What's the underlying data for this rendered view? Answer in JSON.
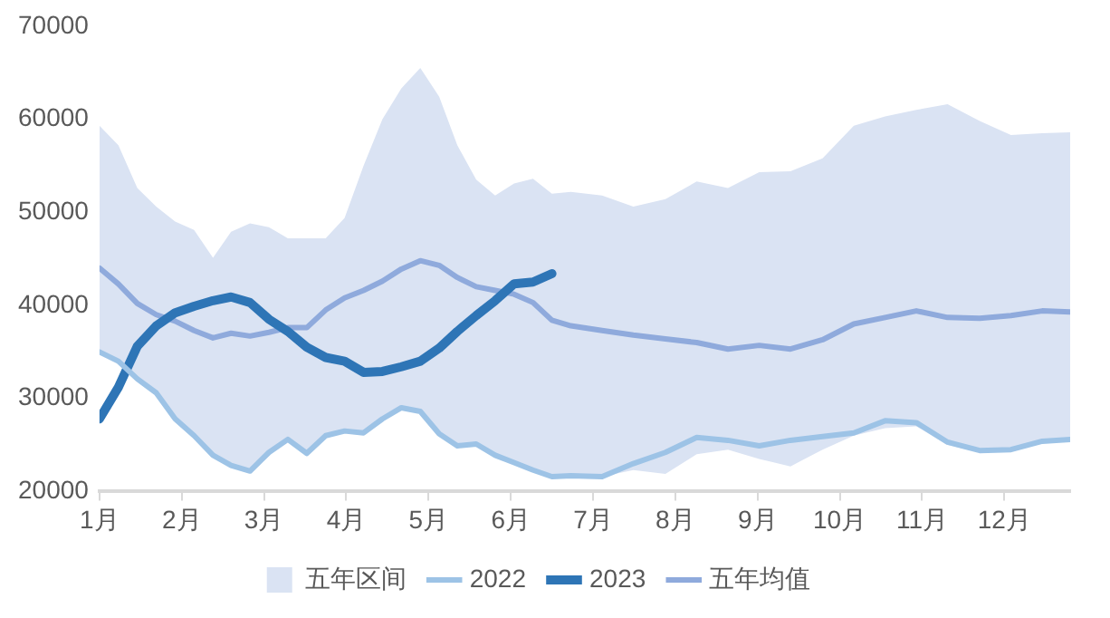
{
  "chart_data": {
    "type": "line",
    "ylim": [
      20000,
      70000
    ],
    "yticks": [
      20000,
      30000,
      40000,
      50000,
      60000,
      70000
    ],
    "xlim": [
      1,
      12.8
    ],
    "xticks": [
      {
        "value": 1,
        "label": "1月"
      },
      {
        "value": 2,
        "label": "2月"
      },
      {
        "value": 3,
        "label": "3月"
      },
      {
        "value": 4,
        "label": "4月"
      },
      {
        "value": 5,
        "label": "5月"
      },
      {
        "value": 6,
        "label": "6月"
      },
      {
        "value": 7,
        "label": "7月"
      },
      {
        "value": 8,
        "label": "8月"
      },
      {
        "value": 9,
        "label": "9月"
      },
      {
        "value": 10,
        "label": "10月"
      },
      {
        "value": 11,
        "label": "11月"
      },
      {
        "value": 12,
        "label": "12月"
      }
    ],
    "x": [
      1.0,
      1.23,
      1.46,
      1.69,
      1.92,
      2.15,
      2.38,
      2.6,
      2.83,
      3.06,
      3.29,
      3.52,
      3.75,
      3.98,
      4.21,
      4.44,
      4.67,
      4.9,
      5.13,
      5.35,
      5.58,
      5.81,
      6.04,
      6.27,
      6.5,
      6.73,
      7.11,
      7.49,
      7.88,
      8.26,
      8.64,
      9.02,
      9.4,
      9.79,
      10.17,
      10.55,
      10.93,
      11.31,
      11.7,
      12.08,
      12.46,
      12.8
    ],
    "grid": false,
    "legend": "bottom",
    "marker": "none",
    "line_style": "solid",
    "series": [
      {
        "name": "五年区间",
        "type": "area",
        "color": "#dae3f3",
        "values": [
          null,
          null,
          null,
          null,
          null,
          null,
          null,
          null,
          null,
          null,
          null,
          null,
          null,
          null,
          null,
          null,
          null,
          null,
          null,
          null,
          null,
          null,
          null,
          null,
          null,
          null,
          null,
          null,
          null,
          null,
          null,
          null,
          null,
          null,
          null,
          null,
          null,
          null,
          null,
          null,
          null,
          null
        ],
        "lower": [
          35000,
          34000,
          32100,
          30600,
          27800,
          26000,
          23900,
          22800,
          22200,
          24200,
          25600,
          24100,
          26000,
          26500,
          26300,
          27800,
          29000,
          28600,
          26200,
          24900,
          25100,
          23900,
          23100,
          22300,
          21600,
          21700,
          21600,
          22300,
          21900,
          24000,
          24500,
          23500,
          22700,
          24500,
          26000,
          26800,
          27000,
          25000,
          24200,
          24300,
          25200,
          25400
        ],
        "upper": [
          59300,
          57200,
          52600,
          50600,
          49000,
          48100,
          45100,
          47900,
          48800,
          48400,
          47200,
          47200,
          47200,
          49400,
          55000,
          60000,
          63300,
          65500,
          62400,
          57200,
          53500,
          51800,
          53100,
          53600,
          52000,
          52200,
          51800,
          50600,
          51400,
          53300,
          52600,
          54300,
          54400,
          55800,
          59300,
          60300,
          61000,
          61600,
          59800,
          58300,
          58500,
          58600
        ]
      },
      {
        "name": "2022",
        "color": "#9dc3e6",
        "values": [
          35000,
          34000,
          32100,
          30600,
          27800,
          26000,
          23900,
          22800,
          22200,
          24200,
          25600,
          24100,
          26000,
          26500,
          26300,
          27800,
          29000,
          28600,
          26200,
          24900,
          25100,
          23900,
          23100,
          22300,
          21600,
          21700,
          21600,
          23000,
          24200,
          25800,
          25500,
          24900,
          25500,
          25900,
          26300,
          27600,
          27400,
          25300,
          24400,
          24500,
          25400,
          25600
        ]
      },
      {
        "name": "2023",
        "color": "#2e75b6",
        "x": [
          1.0,
          1.23,
          1.46,
          1.69,
          1.92,
          2.15,
          2.38,
          2.6,
          2.83,
          3.06,
          3.29,
          3.52,
          3.75,
          3.98,
          4.21,
          4.44,
          4.67,
          4.9,
          5.13,
          5.35,
          5.58,
          5.81,
          6.04,
          6.27,
          6.5
        ],
        "values": [
          27800,
          31200,
          35600,
          37800,
          39200,
          39900,
          40500,
          40900,
          40300,
          38500,
          37200,
          35500,
          34400,
          34000,
          32800,
          32900,
          33400,
          34000,
          35400,
          37200,
          38900,
          40500,
          42300,
          42500,
          43400
        ]
      },
      {
        "name": "五年均值",
        "color": "#8faadc",
        "values": [
          44000,
          42300,
          40200,
          39000,
          38300,
          37300,
          36500,
          37000,
          36700,
          37100,
          37600,
          37600,
          39500,
          40800,
          41600,
          42600,
          43900,
          44800,
          44300,
          43000,
          42000,
          41600,
          41200,
          40300,
          38400,
          37800,
          37300,
          36800,
          36400,
          36000,
          35300,
          35700,
          35300,
          36300,
          38000,
          38700,
          39400,
          38700,
          38600,
          38900,
          39400,
          39300
        ]
      }
    ]
  }
}
